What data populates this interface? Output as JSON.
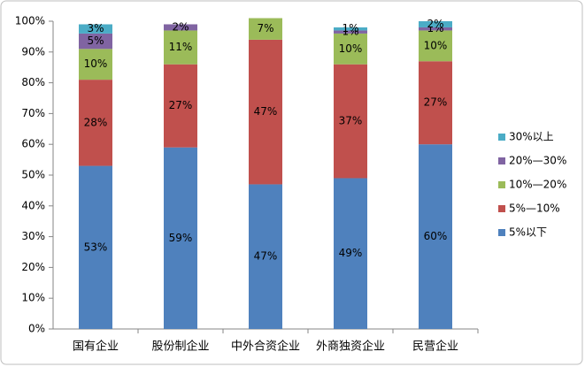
{
  "chart_data": {
    "type": "stacked_bar",
    "categories": [
      "国有企业",
      "股份制企业",
      "中外合资企业",
      "外商独资企业",
      "民营企业"
    ],
    "series": [
      {
        "name": "5%以下",
        "color": "#4f81bd",
        "values": [
          53,
          59,
          47,
          49,
          60
        ],
        "value_labels": [
          "53%",
          "59%",
          "47%",
          "49%",
          "60%"
        ]
      },
      {
        "name": "5%—10%",
        "color": "#c0504d",
        "values": [
          28,
          27,
          47,
          37,
          27
        ],
        "value_labels": [
          "28%",
          "27%",
          "47%",
          "37%",
          "27%"
        ]
      },
      {
        "name": "10%—20%",
        "color": "#9bbb59",
        "values": [
          10,
          11,
          7,
          10,
          10
        ],
        "value_labels": [
          "10%",
          "11%",
          "7%",
          "10%",
          "10%"
        ]
      },
      {
        "name": "20%—30%",
        "color": "#8064a2",
        "values": [
          5,
          2,
          null,
          1,
          1
        ],
        "value_labels": [
          "5%",
          "2%",
          null,
          "1%",
          "1%"
        ]
      },
      {
        "name": "30%以上",
        "color": "#4bacc6",
        "values": [
          3,
          null,
          null,
          1,
          2
        ],
        "value_labels": [
          "3%",
          null,
          null,
          "1%",
          "2%"
        ]
      }
    ],
    "ylim": [
      0,
      100
    ],
    "yticks": [
      {
        "value": 0,
        "label": "0%"
      },
      {
        "value": 10,
        "label": "10%"
      },
      {
        "value": 20,
        "label": "20%"
      },
      {
        "value": 30,
        "label": "30%"
      },
      {
        "value": 40,
        "label": "40%"
      },
      {
        "value": 50,
        "label": "50%"
      },
      {
        "value": 60,
        "label": "60%"
      },
      {
        "value": 70,
        "label": "70%"
      },
      {
        "value": 80,
        "label": "80%"
      },
      {
        "value": 90,
        "label": "90%"
      },
      {
        "value": 100,
        "label": "100%"
      }
    ],
    "legend": "right"
  }
}
